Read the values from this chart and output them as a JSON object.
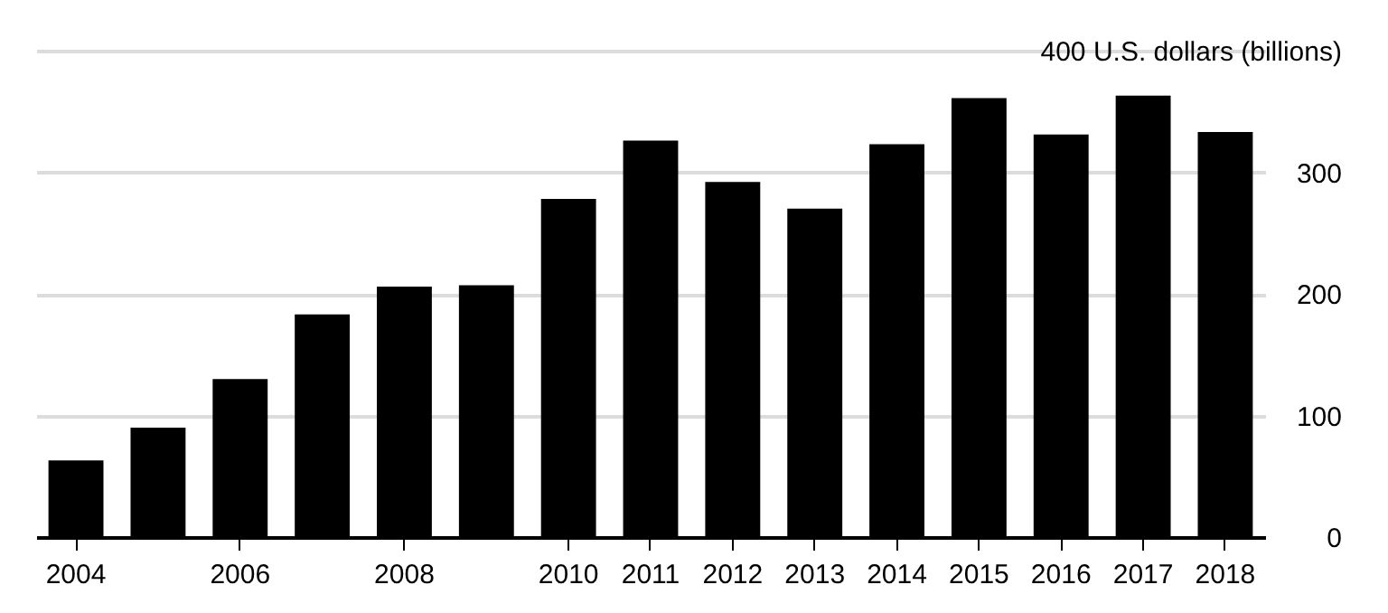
{
  "chart_data": {
    "type": "bar",
    "categories": [
      "2004",
      null,
      "2006",
      null,
      "2008",
      null,
      "2010",
      "2011",
      "2012",
      "2013",
      "2014",
      "2015",
      "2016",
      "2017",
      "2018"
    ],
    "values": [
      63,
      90,
      130,
      183,
      206,
      207,
      278,
      326,
      292,
      270,
      323,
      361,
      331,
      363,
      333
    ],
    "color": "#000000",
    "ylim": [
      0,
      400
    ],
    "yticks": [
      0,
      100,
      200,
      300,
      {
        "value": 400,
        "label": "400 U.S. dollars (billions)"
      }
    ],
    "grid": "y"
  }
}
